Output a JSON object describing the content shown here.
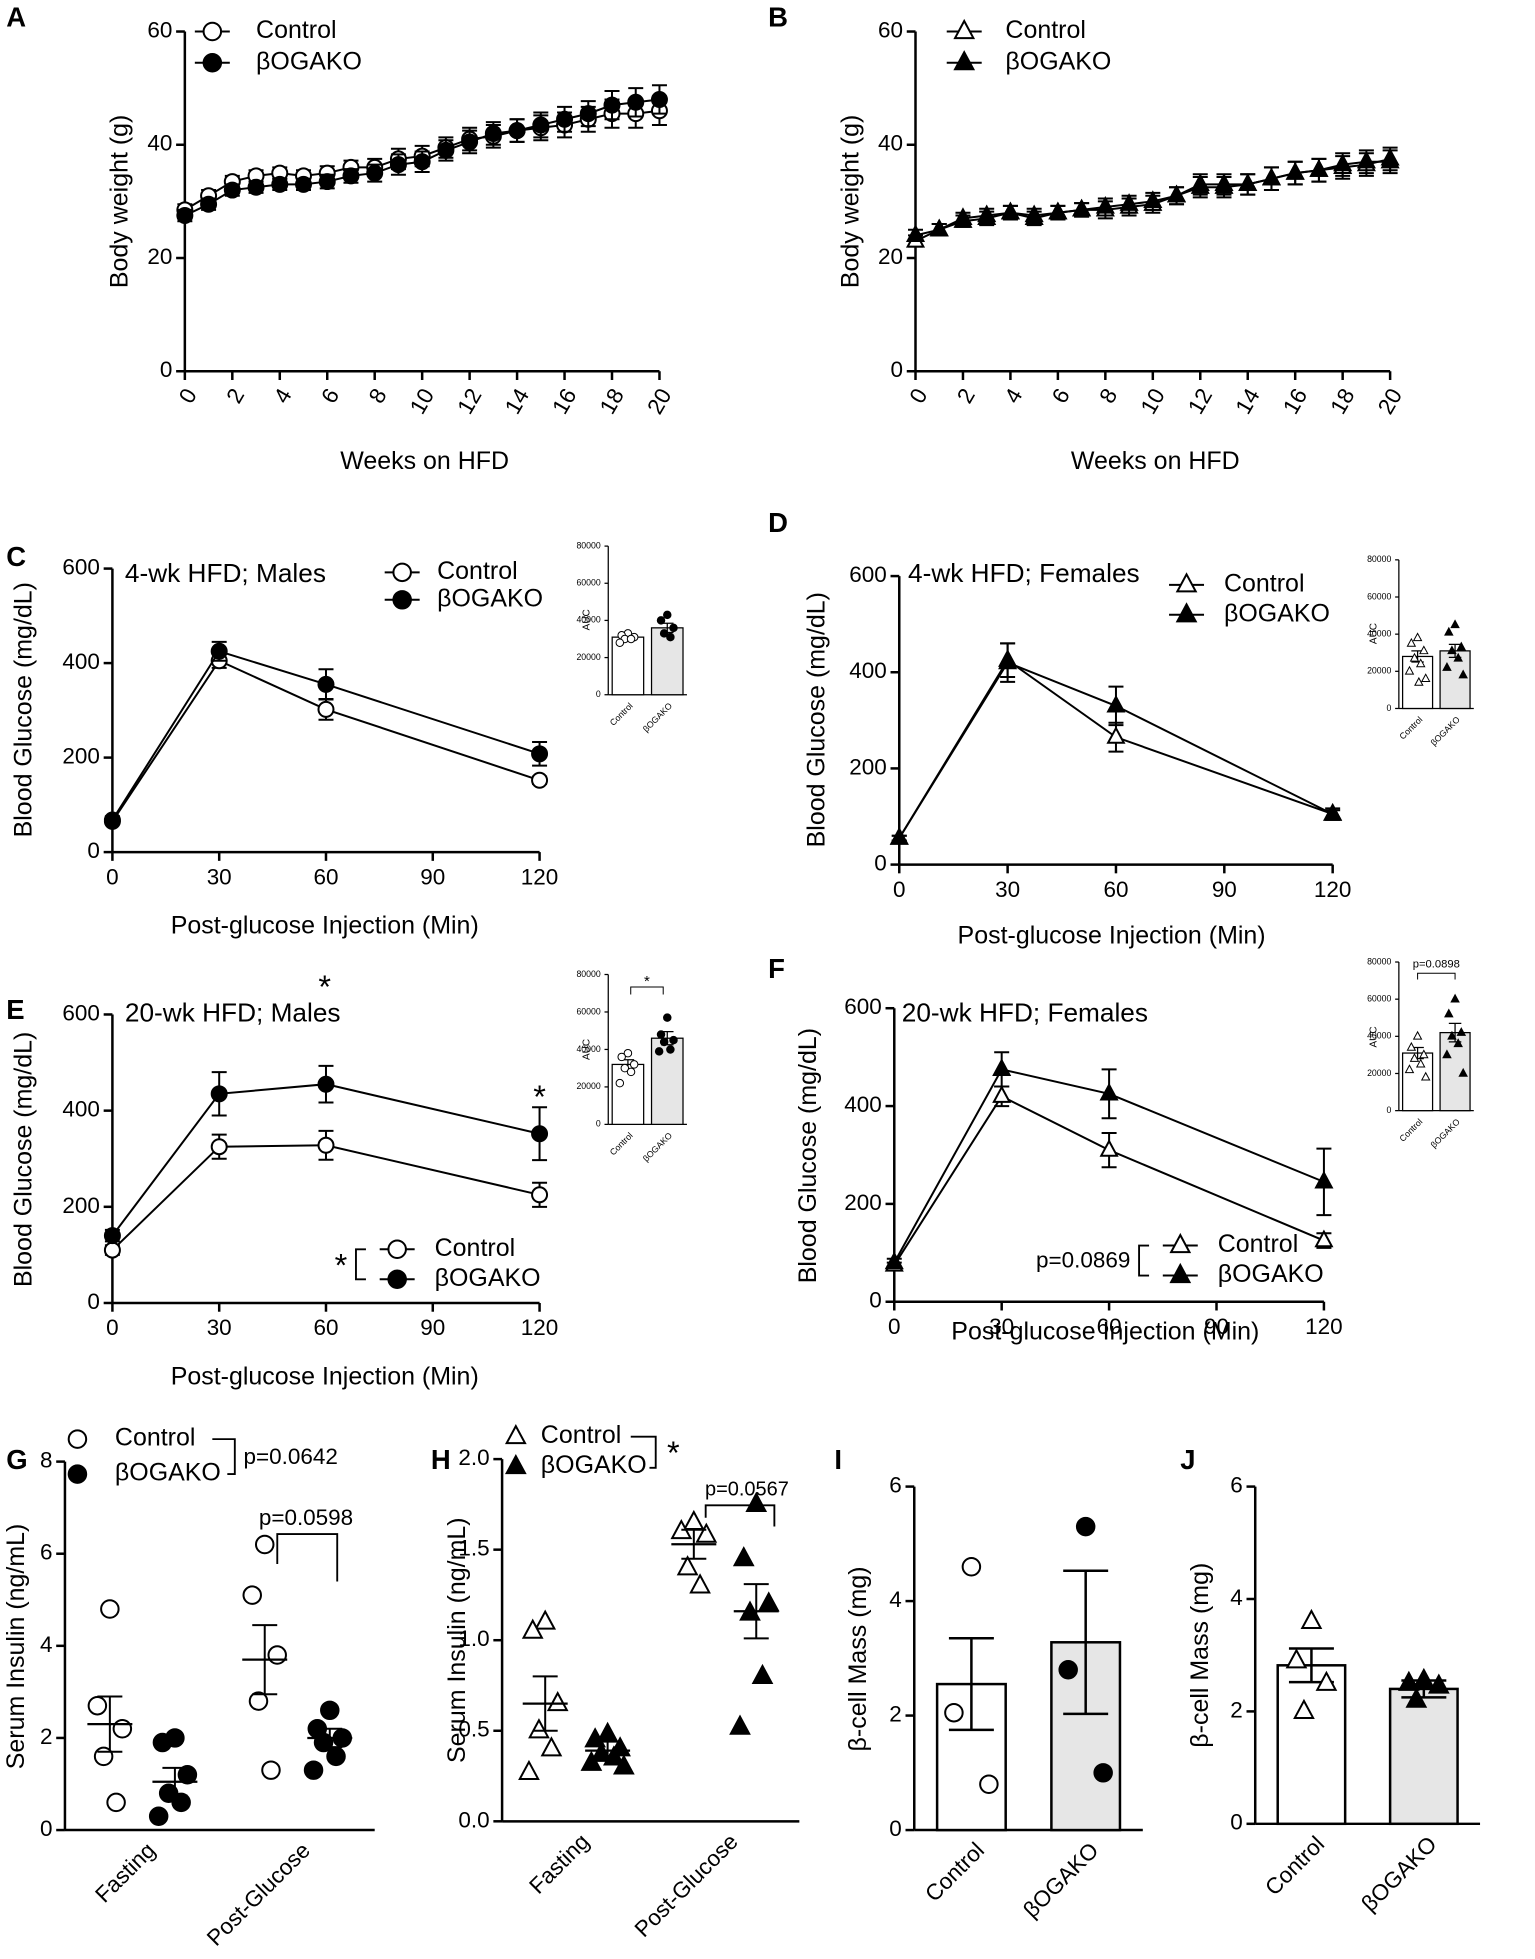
{
  "chart_data": [
    {
      "type": "line",
      "panel": "A",
      "xlabel": "Weeks on HFD",
      "ylabel": "Body weight (g)",
      "x": [
        0,
        1,
        2,
        3,
        4,
        5,
        6,
        7,
        8,
        9,
        10,
        11,
        12,
        13,
        14,
        15,
        16,
        17,
        18,
        19,
        20
      ],
      "xlim": [
        0,
        20
      ],
      "xticks": [
        0,
        2,
        4,
        6,
        8,
        10,
        12,
        14,
        16,
        18,
        20
      ],
      "ylim": [
        0,
        60
      ],
      "yticks": [
        0,
        20,
        40,
        60
      ],
      "series": [
        {
          "name": "Control",
          "marker": "circle",
          "fill": "#ffffff",
          "color": "#000000",
          "values": [
            28.5,
            31,
            33.5,
            34.5,
            35,
            34.5,
            35,
            36,
            36,
            37.5,
            38,
            39.5,
            41,
            41.5,
            42.5,
            43,
            43.5,
            44.5,
            45.5,
            45.5,
            46
          ],
          "errors": [
            1,
            1,
            1,
            1,
            1,
            1,
            1.2,
            1.2,
            1.5,
            1.8,
            1.8,
            1.8,
            2,
            2,
            2,
            2.2,
            2.2,
            2.2,
            2.5,
            2.5,
            2.5
          ]
        },
        {
          "name": "βOGAKO",
          "marker": "circle",
          "fill": "#000000",
          "color": "#000000",
          "values": [
            27.5,
            29.5,
            32,
            32.5,
            33,
            33,
            33.5,
            34.5,
            35,
            36.5,
            37,
            39,
            40.5,
            42,
            42.5,
            43.5,
            44.5,
            45.5,
            47,
            47.5,
            48
          ],
          "errors": [
            1,
            1,
            1,
            1,
            1,
            1,
            1.2,
            1.2,
            1.5,
            1.8,
            1.8,
            1.8,
            2,
            2,
            2,
            2.2,
            2.2,
            2.2,
            2.5,
            2.5,
            2.5
          ]
        }
      ]
    },
    {
      "type": "line",
      "panel": "B",
      "xlabel": "Weeks on HFD",
      "ylabel": "Body weight (g)",
      "x": [
        0,
        1,
        2,
        3,
        4,
        5,
        6,
        7,
        8,
        9,
        10,
        11,
        12,
        13,
        14,
        15,
        16,
        17,
        18,
        19,
        20
      ],
      "xlim": [
        0,
        20
      ],
      "xticks": [
        0,
        2,
        4,
        6,
        8,
        10,
        12,
        14,
        16,
        18,
        20
      ],
      "ylim": [
        0,
        60
      ],
      "yticks": [
        0,
        20,
        40,
        60
      ],
      "series": [
        {
          "name": "Control",
          "marker": "triangle",
          "fill": "#ffffff",
          "color": "#000000",
          "values": [
            23,
            25,
            27,
            27.5,
            28,
            27.5,
            28,
            28.5,
            28.5,
            29,
            29.5,
            31,
            33,
            33,
            33,
            34,
            35,
            35.5,
            36,
            36.5,
            37.5
          ],
          "errors": [
            1,
            1,
            1,
            1.2,
            1.2,
            1.2,
            1.2,
            1.2,
            1.5,
            1.5,
            1.5,
            1.5,
            1.8,
            1.8,
            1.8,
            2,
            2,
            2,
            2,
            2,
            2
          ]
        },
        {
          "name": "βOGAKO",
          "marker": "triangle",
          "fill": "#000000",
          "color": "#000000",
          "values": [
            24,
            25,
            26.5,
            27,
            28,
            27,
            28,
            28.5,
            29,
            29.5,
            30,
            31,
            32.5,
            32.5,
            33,
            34,
            35,
            35.5,
            36.5,
            37,
            37
          ],
          "errors": [
            1,
            1,
            1,
            1.2,
            1.2,
            1.2,
            1.2,
            1.2,
            1.5,
            1.5,
            1.5,
            1.5,
            1.8,
            1.8,
            1.8,
            2,
            2,
            2,
            2,
            2,
            2
          ]
        }
      ]
    },
    {
      "type": "line",
      "panel": "C",
      "title": "4-wk HFD; Males",
      "xlabel": "Post-glucose Injection (Min)",
      "ylabel": "Blood Glucose (mg/dL)",
      "x": [
        0,
        30,
        60,
        120
      ],
      "xlim": [
        0,
        120
      ],
      "xticks": [
        0,
        30,
        60,
        90,
        120
      ],
      "ylim": [
        0,
        600
      ],
      "yticks": [
        0,
        200,
        400,
        600
      ],
      "series": [
        {
          "name": "Control",
          "marker": "circle",
          "fill": "#ffffff",
          "color": "#000000",
          "values": [
            65,
            405,
            302,
            152
          ],
          "errors": [
            5,
            15,
            22,
            8
          ]
        },
        {
          "name": "βOGAKO",
          "marker": "circle",
          "fill": "#000000",
          "color": "#000000",
          "values": [
            68,
            425,
            355,
            208
          ],
          "errors": [
            8,
            20,
            32,
            25
          ]
        }
      ]
    },
    {
      "type": "bar",
      "ylabel": "AUC",
      "categories": [
        "Control",
        "βOGAKO"
      ],
      "values": [
        31000,
        36000
      ],
      "errors": [
        1000,
        2500
      ],
      "points": [
        [
          33000,
          32000,
          31000,
          30000,
          30000,
          28000
        ],
        [
          43000,
          40000,
          36000,
          33000,
          31000
        ]
      ],
      "colors": [
        "#ffffff",
        "#e6e6e6"
      ],
      "marker": "circle",
      "marker_fills": [
        "#ffffff",
        "#000000"
      ],
      "ylim": [
        0,
        80000
      ],
      "yticks": [
        0,
        20000,
        40000,
        60000,
        80000
      ]
    },
    {
      "type": "line",
      "panel": "D",
      "title": "4-wk HFD; Females",
      "xlabel": "Post-glucose Injection (Min)",
      "ylabel": "Blood Glucose (mg/dL)",
      "x": [
        0,
        30,
        60,
        120
      ],
      "xlim": [
        0,
        120
      ],
      "xticks": [
        0,
        30,
        60,
        90,
        120
      ],
      "ylim": [
        0,
        600
      ],
      "yticks": [
        0,
        200,
        400,
        600
      ],
      "series": [
        {
          "name": "Control",
          "marker": "triangle",
          "fill": "#ffffff",
          "color": "#000000",
          "values": [
            55,
            425,
            265,
            105
          ],
          "errors": [
            5,
            35,
            30,
            8
          ]
        },
        {
          "name": "βOGAKO",
          "marker": "triangle",
          "fill": "#000000",
          "color": "#000000",
          "values": [
            55,
            420,
            330,
            105
          ],
          "errors": [
            5,
            40,
            40,
            12
          ]
        }
      ]
    },
    {
      "type": "bar",
      "ylabel": "AUC",
      "categories": [
        "Control",
        "βOGAKO"
      ],
      "values": [
        28000,
        31000
      ],
      "errors": [
        3000,
        3500
      ],
      "points": [
        [
          38000,
          35000,
          31000,
          27000,
          24000,
          20000,
          16000,
          14000
        ],
        [
          45000,
          41000,
          33000,
          31000,
          27000,
          22000,
          18000
        ]
      ],
      "colors": [
        "#ffffff",
        "#e6e6e6"
      ],
      "marker": "triangle",
      "marker_fills": [
        "#ffffff",
        "#000000"
      ],
      "ylim": [
        0,
        80000
      ],
      "yticks": [
        0,
        20000,
        40000,
        60000,
        80000
      ]
    },
    {
      "type": "line",
      "panel": "E",
      "title": "20-wk HFD; Males",
      "xlabel": "Post-glucose Injection (Min)",
      "ylabel": "Blood Glucose (mg/dL)",
      "x": [
        0,
        30,
        60,
        120
      ],
      "xlim": [
        0,
        120
      ],
      "xticks": [
        0,
        30,
        60,
        90,
        120
      ],
      "ylim": [
        0,
        600
      ],
      "yticks": [
        0,
        200,
        400,
        600
      ],
      "annotations": [
        "*",
        "*",
        "*"
      ],
      "series": [
        {
          "name": "Control",
          "marker": "circle",
          "fill": "#ffffff",
          "color": "#000000",
          "values": [
            110,
            325,
            328,
            225
          ],
          "errors": [
            10,
            25,
            30,
            25
          ]
        },
        {
          "name": "βOGAKO",
          "marker": "circle",
          "fill": "#000000",
          "color": "#000000",
          "values": [
            140,
            435,
            455,
            352
          ],
          "errors": [
            12,
            45,
            38,
            55
          ]
        }
      ]
    },
    {
      "type": "bar",
      "ylabel": "AUC",
      "categories": [
        "Control",
        "βOGAKO"
      ],
      "values": [
        32000,
        46000
      ],
      "errors": [
        2500,
        3500
      ],
      "points": [
        [
          38000,
          36000,
          32000,
          30000,
          28000,
          22000
        ],
        [
          57000,
          48000,
          45000,
          44000,
          40000,
          39000
        ]
      ],
      "colors": [
        "#ffffff",
        "#e6e6e6"
      ],
      "marker": "circle",
      "marker_fills": [
        "#ffffff",
        "#000000"
      ],
      "ylim": [
        0,
        80000
      ],
      "yticks": [
        0,
        20000,
        40000,
        60000,
        80000
      ],
      "annotations": [
        "*"
      ]
    },
    {
      "type": "line",
      "panel": "F",
      "title": "20-wk HFD; Females",
      "xlabel": "Post-glucose Injection (Min)",
      "ylabel": "Blood Glucose (mg/dL)",
      "x": [
        0,
        30,
        60,
        120
      ],
      "xlim": [
        0,
        120
      ],
      "xticks": [
        0,
        30,
        60,
        90,
        120
      ],
      "ylim": [
        0,
        600
      ],
      "yticks": [
        0,
        200,
        400,
        600
      ],
      "annotations": [
        "p=0.0869"
      ],
      "series": [
        {
          "name": "Control",
          "marker": "triangle",
          "fill": "#ffffff",
          "color": "#000000",
          "values": [
            75,
            420,
            310,
            125
          ],
          "errors": [
            5,
            20,
            35,
            15
          ]
        },
        {
          "name": "βOGAKO",
          "marker": "triangle",
          "fill": "#000000",
          "color": "#000000",
          "values": [
            80,
            475,
            425,
            245
          ],
          "errors": [
            8,
            35,
            50,
            68
          ]
        }
      ]
    },
    {
      "type": "bar",
      "ylabel": "AUC",
      "categories": [
        "Control",
        "βOGAKO"
      ],
      "values": [
        31000,
        42000
      ],
      "errors": [
        3000,
        5000
      ],
      "points": [
        [
          40000,
          34000,
          30000,
          28000,
          25000,
          22000,
          18000
        ],
        [
          60000,
          52000,
          42000,
          40000,
          36000,
          30000,
          20000
        ]
      ],
      "colors": [
        "#ffffff",
        "#e6e6e6"
      ],
      "marker": "triangle",
      "marker_fills": [
        "#ffffff",
        "#000000"
      ],
      "ylim": [
        0,
        80000
      ],
      "yticks": [
        0,
        20000,
        40000,
        60000,
        80000
      ],
      "annotations": [
        "p=0.0898"
      ]
    },
    {
      "type": "scatter",
      "panel": "G",
      "ylabel": "Serum Insulin (ng/mL)",
      "categories": [
        "Fasting",
        "Post-Glucose"
      ],
      "ylim": [
        0,
        8
      ],
      "yticks": [
        0,
        2,
        4,
        6,
        8
      ],
      "annotations": [
        "p=0.0642",
        "p=0.0598"
      ],
      "series": [
        {
          "name": "Control",
          "marker": "circle",
          "fill": "#ffffff",
          "values": [
            2.3,
            3.7
          ],
          "errors": [
            0.6,
            0.75
          ],
          "points": [
            [
              4.8,
              2.7,
              2.2,
              1.6,
              0.6
            ],
            [
              6.2,
              5.1,
              3.8,
              2.8,
              1.3
            ]
          ]
        },
        {
          "name": "βOGAKO",
          "marker": "circle",
          "fill": "#000000",
          "values": [
            1.05,
            2.0
          ],
          "errors": [
            0.3,
            0.2
          ],
          "points": [
            [
              2.0,
              1.9,
              1.2,
              0.8,
              0.6,
              0.3
            ],
            [
              2.6,
              2.2,
              2.0,
              1.9,
              1.6,
              1.3
            ]
          ]
        }
      ]
    },
    {
      "type": "scatter",
      "panel": "H",
      "ylabel": "Serum Insulin (ng/mL)",
      "categories": [
        "Fasting",
        "Post-Glucose"
      ],
      "ylim": [
        0,
        2
      ],
      "yticks": [
        {
          "value": 0,
          "label": "0.0"
        },
        0.5,
        {
          "value": 1,
          "label": "1.0"
        },
        1.5,
        {
          "value": 2,
          "label": "2.0"
        }
      ],
      "annotations": [
        "*",
        "p=0.0567"
      ],
      "series": [
        {
          "name": "Control",
          "marker": "triangle",
          "fill": "#ffffff",
          "values": [
            0.65,
            1.53
          ],
          "errors": [
            0.15,
            0.08
          ],
          "points": [
            [
              1.1,
              1.05,
              0.65,
              0.5,
              0.4,
              0.27
            ],
            [
              1.65,
              1.6,
              1.58,
              1.4,
              1.3
            ]
          ]
        },
        {
          "name": "βOGAKO",
          "marker": "triangle",
          "fill": "#000000",
          "values": [
            0.39,
            1.16
          ],
          "errors": [
            0.05,
            0.15
          ],
          "points": [
            [
              0.48,
              0.45,
              0.4,
              0.37,
              0.35,
              0.32,
              0.3
            ],
            [
              1.75,
              1.45,
              1.2,
              1.15,
              0.8,
              0.52
            ]
          ]
        }
      ]
    },
    {
      "type": "bar",
      "panel": "I",
      "ylabel": "β-cell Mass (mg)",
      "categories": [
        "Control",
        "βOGAKO"
      ],
      "values": [
        2.55,
        3.28
      ],
      "errors": [
        0.8,
        1.25
      ],
      "points": [
        [
          4.6,
          2.05,
          0.8
        ],
        [
          5.3,
          2.8,
          1.0
        ]
      ],
      "colors": [
        "#ffffff",
        "#e6e6e6"
      ],
      "marker": "circle",
      "marker_fills": [
        "#ffffff",
        "#000000"
      ],
      "ylim": [
        0,
        6
      ],
      "yticks": [
        0,
        2,
        4,
        6
      ]
    },
    {
      "type": "bar",
      "panel": "J",
      "ylabel": "β-cell Mass (mg)",
      "categories": [
        "Control",
        "βOGAKO"
      ],
      "values": [
        2.82,
        2.4
      ],
      "errors": [
        0.3,
        0.15
      ],
      "points": [
        [
          3.6,
          2.9,
          2.5,
          2.0
        ],
        [
          2.55,
          2.5,
          2.45,
          2.2
        ]
      ],
      "colors": [
        "#ffffff",
        "#e6e6e6"
      ],
      "marker": "triangle",
      "marker_fills": [
        "#ffffff",
        "#000000"
      ],
      "ylim": [
        0,
        6
      ],
      "yticks": [
        0,
        2,
        4,
        6
      ]
    }
  ]
}
